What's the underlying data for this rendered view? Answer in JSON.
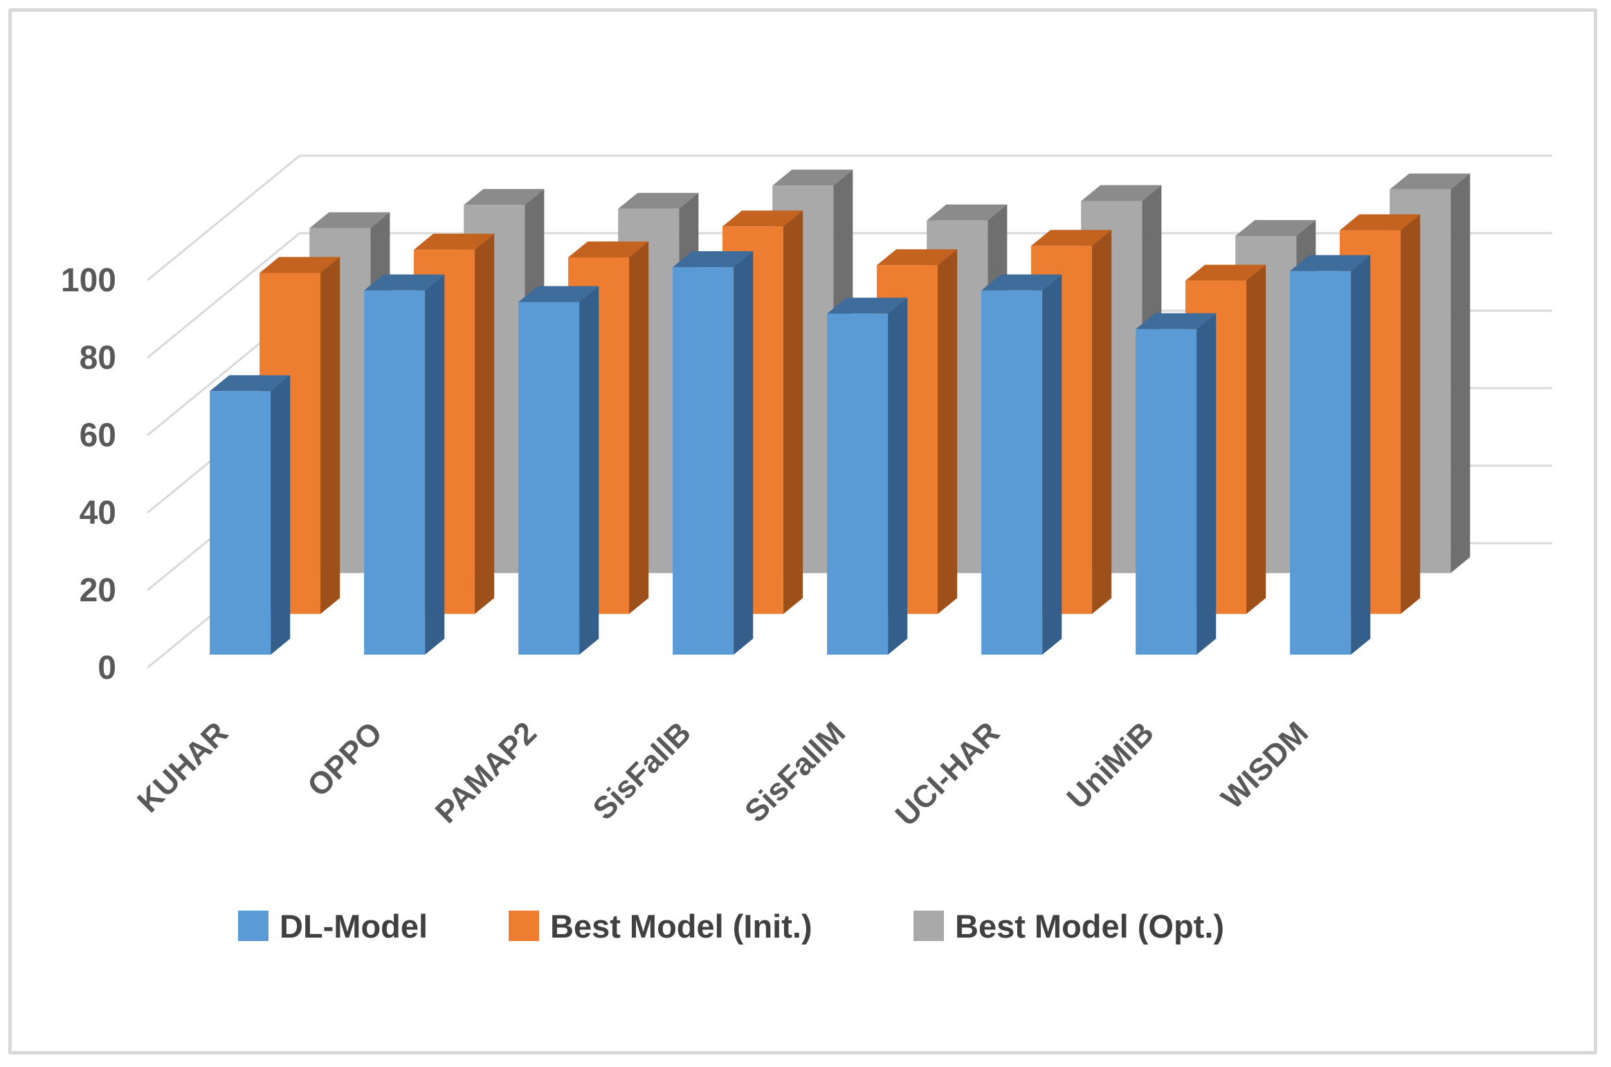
{
  "chart_data": {
    "type": "bar",
    "projection": "3d-clustered-column",
    "title": "",
    "xlabel": "",
    "ylabel": "",
    "categories": [
      "KUHAR",
      "OPPO",
      "PAMAP2",
      "SisFallB",
      "SisFallM",
      "UCI-HAR",
      "UniMiB",
      "WISDM"
    ],
    "series": [
      {
        "name": "DL-Model",
        "color": "#5B9BD5",
        "values": [
          68,
          94,
          91,
          100,
          88,
          94,
          84,
          99
        ]
      },
      {
        "name": "Best Model (Init.)",
        "color": "#ED7D31",
        "values": [
          88,
          94,
          92,
          100,
          90,
          95,
          86,
          99
        ]
      },
      {
        "name": "Best Model (Opt.)",
        "color": "#A6A6A6",
        "values": [
          89,
          95,
          94,
          100,
          91,
          96,
          87,
          99
        ]
      }
    ],
    "ylim": [
      0,
      100
    ],
    "yticks": [
      0,
      20,
      40,
      60,
      80,
      100
    ],
    "grid": true,
    "legend_position": "bottom"
  },
  "legend": {
    "item1": "DL-Model",
    "item2": "Best Model (Init.)",
    "item3": "Best Model (Opt.)"
  },
  "colors": {
    "blue_front": "#5B9BD5",
    "blue_top": "#3E6D9C",
    "blue_side": "#345F8A",
    "orange_front": "#ED7D31",
    "orange_top": "#C46320",
    "orange_side": "#9E501A",
    "gray_front": "#A9A9A9",
    "gray_top": "#8B8B8B",
    "gray_side": "#6F6F6F",
    "gridline": "#D9D9D9",
    "axis_text": "#595959",
    "legend_text": "#404040",
    "border": "#D8D8D8"
  }
}
